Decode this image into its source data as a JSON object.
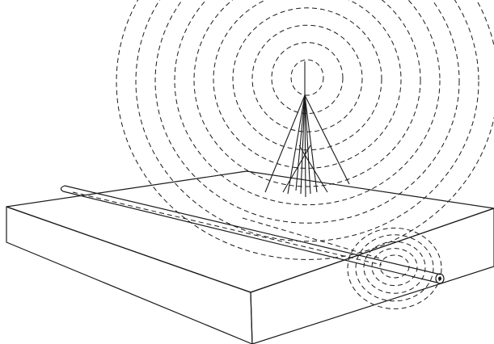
{
  "colors": {
    "background": "#ffffff",
    "line": "#1a1a1a"
  },
  "elements": {
    "ground_slab": "slab-block",
    "antenna_mast": "transmitter-tower",
    "antenna_waves": "concentric-dashed-wave-fronts",
    "buried_conductor": "pipe-conductor",
    "induced_field": "concentric-dashed-field-rings"
  }
}
